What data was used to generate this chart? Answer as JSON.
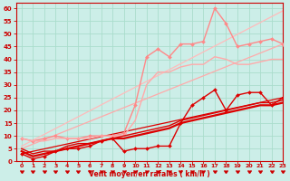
{
  "background_color": "#cceee8",
  "grid_color": "#aaddcc",
  "text_color": "#cc0000",
  "xlabel": "Vent moyen/en rafales ( km/h )",
  "xlim": [
    -0.5,
    23
  ],
  "ylim": [
    0,
    62
  ],
  "yticks": [
    0,
    5,
    10,
    15,
    20,
    25,
    30,
    35,
    40,
    45,
    50,
    55,
    60
  ],
  "xticks": [
    0,
    1,
    2,
    3,
    4,
    5,
    6,
    7,
    8,
    9,
    10,
    11,
    12,
    13,
    14,
    15,
    16,
    17,
    18,
    19,
    20,
    21,
    22,
    23
  ],
  "lines": [
    {
      "x": [
        0,
        1,
        2,
        3,
        4,
        5,
        6,
        7,
        8,
        9,
        10,
        11,
        12,
        13,
        14,
        15,
        16,
        17,
        18,
        19,
        20,
        21,
        22,
        23
      ],
      "y": [
        9,
        8,
        9,
        10,
        9,
        9,
        10,
        10,
        10,
        11,
        22,
        41,
        44,
        41,
        46,
        46,
        47,
        60,
        54,
        45,
        46,
        47,
        48,
        46
      ],
      "color": "#ff8888",
      "linewidth": 1.0,
      "marker": "D",
      "markersize": 2.0,
      "zorder": 3
    },
    {
      "x": [
        0,
        1,
        2,
        3,
        4,
        5,
        6,
        7,
        8,
        9,
        10,
        11,
        12,
        13,
        14,
        15,
        16,
        17,
        18,
        19,
        20,
        21,
        22,
        23
      ],
      "y": [
        9,
        8,
        8,
        9,
        9,
        9,
        9,
        10,
        10,
        10,
        16,
        30,
        35,
        35,
        37,
        38,
        38,
        41,
        40,
        38,
        38,
        39,
        40,
        40
      ],
      "color": "#ffaaaa",
      "linewidth": 1.0,
      "marker": null,
      "markersize": 0,
      "zorder": 3
    },
    {
      "x": [
        0,
        23
      ],
      "y": [
        6,
        59
      ],
      "color": "#ffbbbb",
      "linewidth": 0.9,
      "marker": null,
      "markersize": 0,
      "zorder": 2,
      "linestyle": "-"
    },
    {
      "x": [
        0,
        23
      ],
      "y": [
        5,
        46
      ],
      "color": "#ffaaaa",
      "linewidth": 0.9,
      "marker": null,
      "markersize": 0,
      "zorder": 2,
      "linestyle": "-"
    },
    {
      "x": [
        0,
        1,
        2,
        3,
        4,
        5,
        6,
        7,
        8,
        9,
        10,
        11,
        12,
        13,
        14,
        15,
        16,
        17,
        18,
        19,
        20,
        21,
        22,
        23
      ],
      "y": [
        3,
        1,
        2,
        4,
        5,
        5,
        6,
        8,
        9,
        4,
        5,
        5,
        6,
        6,
        15,
        22,
        25,
        28,
        20,
        26,
        27,
        27,
        22,
        25
      ],
      "color": "#dd0000",
      "linewidth": 1.0,
      "marker": "D",
      "markersize": 2.0,
      "zorder": 5
    },
    {
      "x": [
        0,
        1,
        2,
        3,
        4,
        5,
        6,
        7,
        8,
        9,
        10,
        11,
        12,
        13,
        14,
        15,
        16,
        17,
        18,
        19,
        20,
        21,
        22,
        23
      ],
      "y": [
        4,
        2,
        3,
        4,
        5,
        6,
        7,
        8,
        9,
        9,
        10,
        11,
        12,
        13,
        15,
        16,
        17,
        18,
        19,
        20,
        21,
        22,
        22,
        23
      ],
      "color": "#dd0000",
      "linewidth": 1.6,
      "marker": null,
      "markersize": 0,
      "zorder": 4
    },
    {
      "x": [
        0,
        1,
        2,
        3,
        4,
        5,
        6,
        7,
        8,
        9,
        10,
        11,
        12,
        13,
        14,
        15,
        16,
        17,
        18,
        19,
        20,
        21,
        22,
        23
      ],
      "y": [
        5,
        3,
        4,
        4,
        6,
        7,
        7,
        8,
        9,
        10,
        11,
        12,
        13,
        14,
        16,
        17,
        18,
        19,
        20,
        21,
        22,
        23,
        23,
        24
      ],
      "color": "#dd0000",
      "linewidth": 1.0,
      "marker": null,
      "markersize": 0,
      "zorder": 4
    },
    {
      "x": [
        0,
        23
      ],
      "y": [
        3,
        25
      ],
      "color": "#dd0000",
      "linewidth": 0.9,
      "marker": null,
      "markersize": 0,
      "zorder": 2,
      "linestyle": "-"
    }
  ]
}
